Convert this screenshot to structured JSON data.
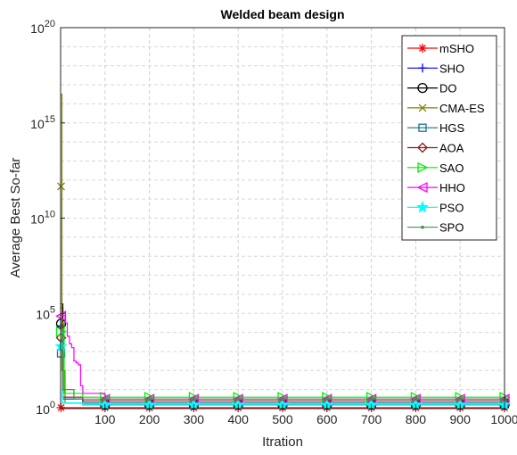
{
  "chart_data": {
    "type": "line",
    "title": "Welded beam design",
    "xlabel": "Itration",
    "ylabel": "Average Best So-far",
    "xlim": [
      0,
      1000
    ],
    "ylim_exponent": [
      0,
      20
    ],
    "yscale": "log",
    "grid": true,
    "legend_position": "top-right",
    "x_ticks": [
      "100",
      "200",
      "300",
      "400",
      "500",
      "600",
      "700",
      "800",
      "900",
      "1000"
    ],
    "y_ticks": [
      {
        "base": "10",
        "exp": "0",
        "value_exp": 0
      },
      {
        "base": "10",
        "exp": "5",
        "value_exp": 5
      },
      {
        "base": "10",
        "exp": "10",
        "value_exp": 10
      },
      {
        "base": "10",
        "exp": "15",
        "value_exp": 15
      },
      {
        "base": "10",
        "exp": "20",
        "value_exp": 20
      }
    ],
    "series": [
      {
        "name": "mSHO",
        "color": "#ff0000",
        "marker": "asterisk",
        "points": [
          [
            0,
            0.05
          ],
          [
            1000,
            0.05
          ]
        ]
      },
      {
        "name": "SHO",
        "color": "#0000ff",
        "marker": "plus",
        "points": [
          [
            0,
            5.3
          ],
          [
            5,
            0.5
          ],
          [
            50,
            0.3
          ],
          [
            100,
            0.2
          ],
          [
            1000,
            0.2
          ]
        ]
      },
      {
        "name": "DO",
        "color": "#000000",
        "marker": "circle",
        "points": [
          [
            0,
            5.5
          ],
          [
            5,
            0.3
          ],
          [
            50,
            0.2
          ],
          [
            1000,
            0.2
          ]
        ]
      },
      {
        "name": "CMA-ES",
        "color": "#808000",
        "marker": "x",
        "points": [
          [
            0,
            16.5
          ],
          [
            3,
            2.0
          ],
          [
            10,
            0.3
          ],
          [
            1000,
            0.3
          ]
        ]
      },
      {
        "name": "HGS",
        "color": "#1f6f8b",
        "marker": "square",
        "points": [
          [
            0,
            3.5
          ],
          [
            5,
            0.5
          ],
          [
            50,
            0.3
          ],
          [
            1000,
            0.3
          ]
        ]
      },
      {
        "name": "AOA",
        "color": "#8b1a1a",
        "marker": "diamond",
        "points": [
          [
            0,
            4.5
          ],
          [
            5,
            0.6
          ],
          [
            50,
            0.4
          ],
          [
            1000,
            0.4
          ]
        ]
      },
      {
        "name": "SAO",
        "color": "#00ee00",
        "marker": "triangle-right",
        "points": [
          [
            0,
            4.5
          ],
          [
            8,
            0.8
          ],
          [
            50,
            0.6
          ],
          [
            1000,
            0.6
          ]
        ]
      },
      {
        "name": "HHO",
        "color": "#ff00ff",
        "marker": "triangle-left",
        "points": [
          [
            0,
            4.9
          ],
          [
            10,
            4.5
          ],
          [
            15,
            3.8
          ],
          [
            20,
            3.4
          ],
          [
            25,
            3.2
          ],
          [
            30,
            2.5
          ],
          [
            35,
            2.4
          ],
          [
            40,
            2.3
          ],
          [
            45,
            1.2
          ],
          [
            50,
            0.8
          ],
          [
            100,
            0.5
          ],
          [
            1000,
            0.5
          ]
        ]
      },
      {
        "name": "PSO",
        "color": "#00ffff",
        "marker": "star",
        "points": [
          [
            0,
            4.0
          ],
          [
            5,
            0.3
          ],
          [
            50,
            0.2
          ],
          [
            1000,
            0.2
          ]
        ]
      },
      {
        "name": "SPO",
        "color": "#4a8a4a",
        "marker": "dot",
        "points": [
          [
            0,
            4.2
          ],
          [
            5,
            1.0
          ],
          [
            30,
            0.5
          ],
          [
            1000,
            0.5
          ]
        ]
      }
    ],
    "marker_x": [
      1,
      100,
      200,
      300,
      400,
      500,
      600,
      700,
      800,
      900,
      1000
    ]
  }
}
